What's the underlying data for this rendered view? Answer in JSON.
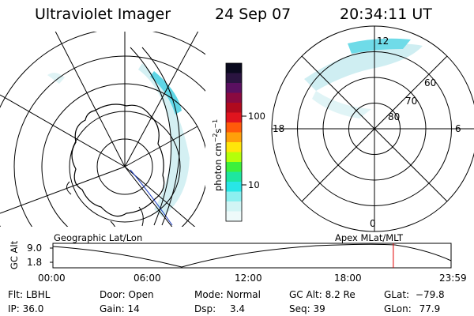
{
  "header": {
    "title": "Ultraviolet Imager",
    "date": "24 Sep 07",
    "time": "20:34:11 UT"
  },
  "colorbar": {
    "unit_prefix": "photon cm",
    "exp1": "−2",
    "mid": "s",
    "exp2": "−1",
    "ticks": [
      "100",
      "10"
    ],
    "colors": [
      "#0a0a1e",
      "#2a1440",
      "#5a1060",
      "#8a0a40",
      "#b00a1e",
      "#e0141e",
      "#ff5a0a",
      "#ffa00a",
      "#ffe60a",
      "#b4ff0a",
      "#3cf03c",
      "#1ee6a0",
      "#28e6e6",
      "#8cf0f0",
      "#d2f5f5",
      "#eefafa"
    ]
  },
  "left_map": {
    "label": "Geographic Lat/Lon"
  },
  "right_map": {
    "label": "Apex MLat/MLT",
    "mlt_labels": {
      "top": "12",
      "left": "18",
      "right": "6",
      "bottom": "0"
    },
    "lat_labels": [
      "60",
      "70",
      "80"
    ]
  },
  "timeline": {
    "y_label": "GC Alt",
    "y_ticks": [
      "9.0",
      "1.8"
    ],
    "x_ticks": [
      "00:00",
      "06:00",
      "12:00",
      "18:00",
      "23:59"
    ],
    "current_time_fraction": 0.8549,
    "marker_color": "#e00000"
  },
  "status": {
    "row1": [
      {
        "label": "Flt:",
        "value": "LBHL"
      },
      {
        "label": "Door:",
        "value": "Open"
      },
      {
        "label": "Mode:",
        "value": "Normal"
      },
      {
        "label": "GC Alt:",
        "value": "8.2 Re"
      },
      {
        "label": "GLat:",
        "value": "−79.8"
      }
    ],
    "row2": [
      {
        "label": "IP:",
        "value": "36.0"
      },
      {
        "label": "Gain:",
        "value": "14"
      },
      {
        "label": "Dsp:",
        "value": "3.4"
      },
      {
        "label": "Seq:",
        "value": "39"
      },
      {
        "label": "GLon:",
        "value": "77.9"
      }
    ]
  }
}
